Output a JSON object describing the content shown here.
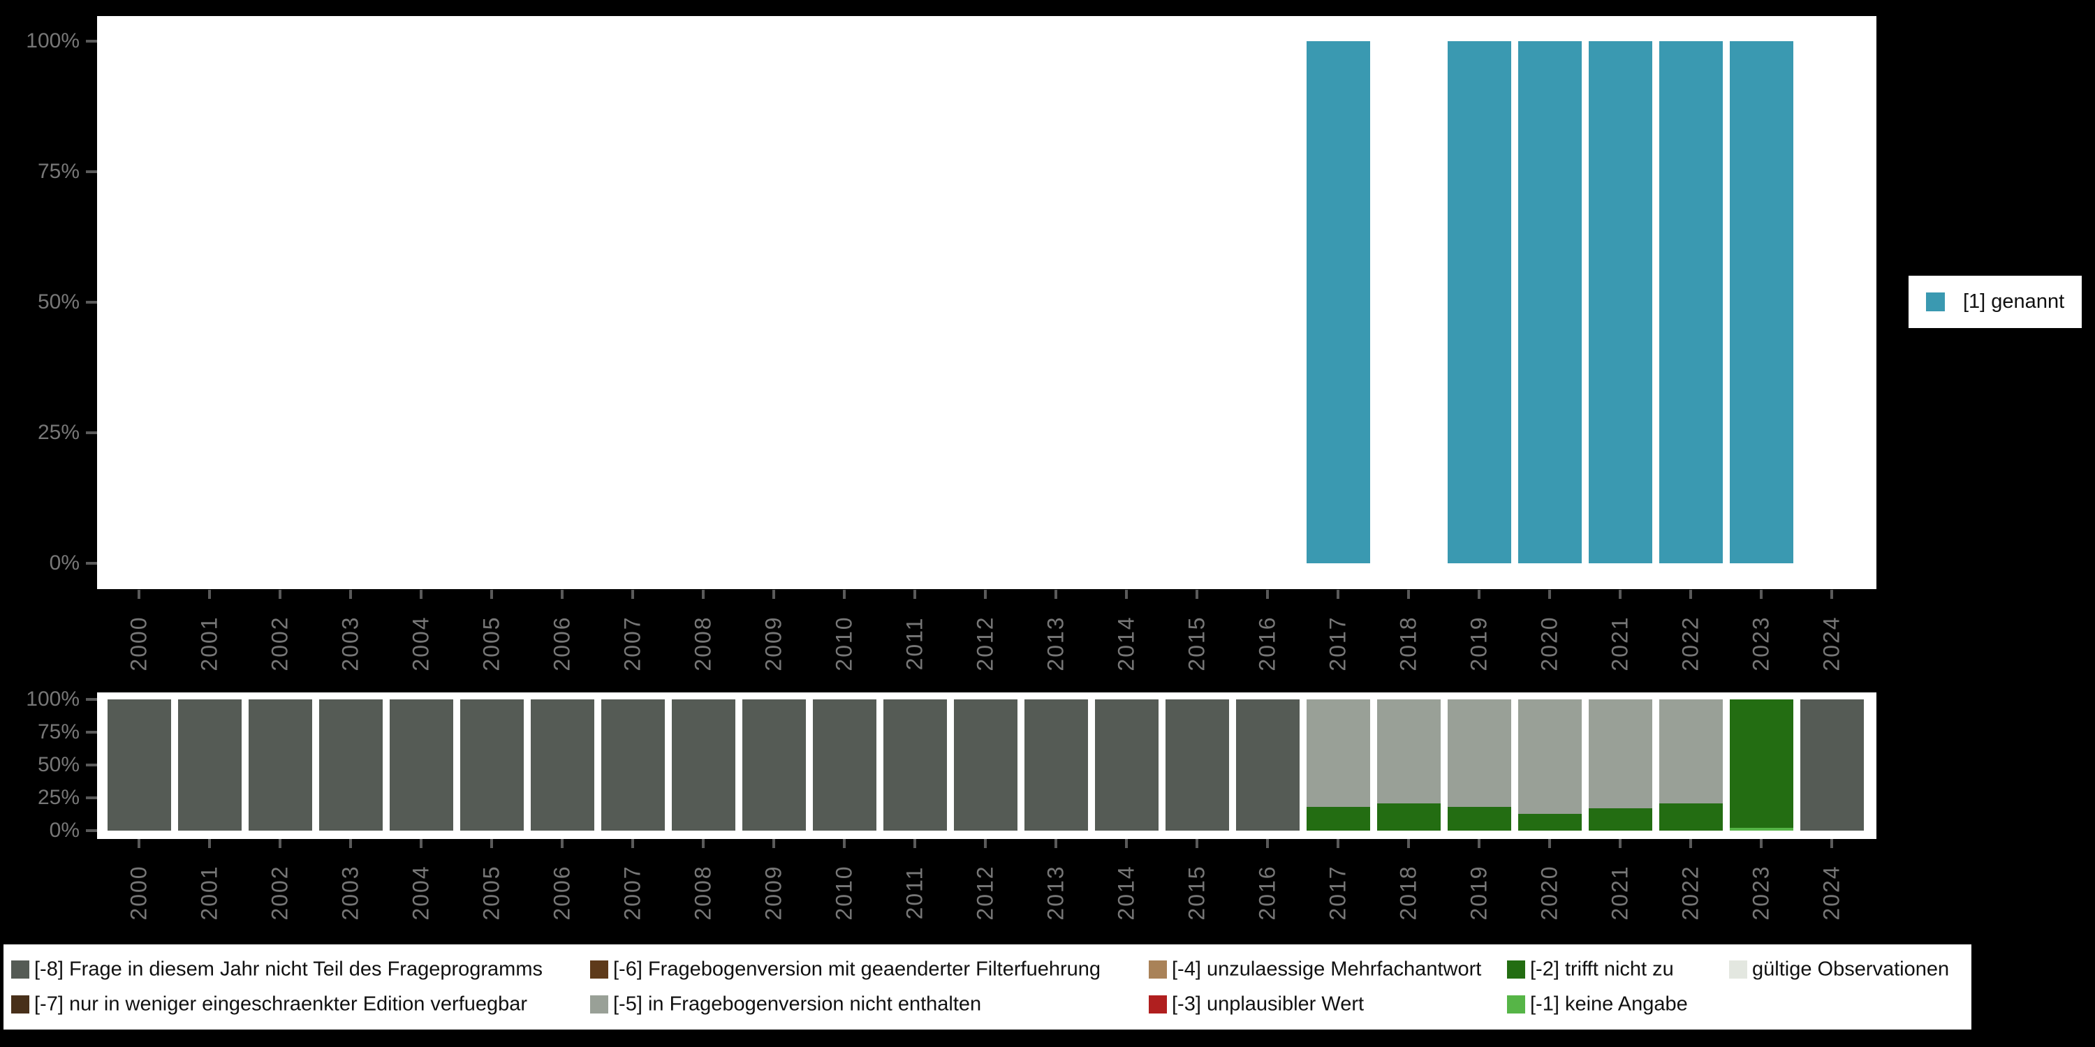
{
  "figure": {
    "background": "#000000",
    "panel_background": "#ffffff",
    "axis_text_color": "#777777",
    "tick_color": "#5a5a5a"
  },
  "chart_data": [
    {
      "type": "bar",
      "stacked": true,
      "title": "",
      "xlabel": "",
      "ylabel": "",
      "x": [
        2000,
        2001,
        2002,
        2003,
        2004,
        2005,
        2006,
        2007,
        2008,
        2009,
        2010,
        2011,
        2012,
        2013,
        2014,
        2015,
        2016,
        2017,
        2018,
        2019,
        2020,
        2021,
        2022,
        2023,
        2024
      ],
      "yticks": [
        "0%",
        "25%",
        "50%",
        "75%",
        "100%"
      ],
      "ylim": [
        0,
        100
      ],
      "grid": false,
      "legend_position": "right",
      "series": [
        {
          "name": "[1] genannt",
          "color": "#3A99B1",
          "values": [
            0,
            0,
            0,
            0,
            0,
            0,
            0,
            0,
            0,
            0,
            0,
            0,
            0,
            0,
            0,
            0,
            0,
            100,
            0,
            100,
            100,
            100,
            100,
            100,
            0
          ]
        }
      ]
    },
    {
      "type": "bar",
      "stacked": true,
      "title": "",
      "xlabel": "",
      "ylabel": "",
      "x": [
        2000,
        2001,
        2002,
        2003,
        2004,
        2005,
        2006,
        2007,
        2008,
        2009,
        2010,
        2011,
        2012,
        2013,
        2014,
        2015,
        2016,
        2017,
        2018,
        2019,
        2020,
        2021,
        2022,
        2023,
        2024
      ],
      "yticks": [
        "0%",
        "25%",
        "50%",
        "75%",
        "100%"
      ],
      "ylim": [
        0,
        100
      ],
      "grid": false,
      "legend_position": "bottom",
      "series": [
        {
          "name": "[-1] keine Angabe",
          "color": "#56B547",
          "values": [
            0,
            0,
            0,
            0,
            0,
            0,
            0,
            0,
            0,
            0,
            0,
            0,
            0,
            0,
            0,
            0,
            0,
            0,
            0,
            0,
            0,
            0,
            0,
            2,
            0
          ]
        },
        {
          "name": "[-2] trifft nicht zu",
          "color": "#236D12",
          "values": [
            0,
            0,
            0,
            0,
            0,
            0,
            0,
            0,
            0,
            0,
            0,
            0,
            0,
            0,
            0,
            0,
            0,
            18,
            21,
            18,
            13,
            17,
            21,
            98,
            0
          ]
        },
        {
          "name": "[-5] in Fragebogenversion nicht enthalten",
          "color": "#99A097",
          "values": [
            0,
            0,
            0,
            0,
            0,
            0,
            0,
            0,
            0,
            0,
            0,
            0,
            0,
            0,
            0,
            0,
            0,
            82,
            79,
            82,
            87,
            83,
            79,
            0,
            0
          ]
        },
        {
          "name": "[-8] Frage in diesem Jahr nicht Teil des Frageprogramms",
          "color": "#555B55",
          "values": [
            100,
            100,
            100,
            100,
            100,
            100,
            100,
            100,
            100,
            100,
            100,
            100,
            100,
            100,
            100,
            100,
            100,
            0,
            0,
            0,
            0,
            0,
            0,
            0,
            100
          ]
        }
      ]
    }
  ],
  "legend_right": {
    "label": "[1] genannt",
    "color": "#3A99B1"
  },
  "legend_bottom": {
    "columns": [
      [
        {
          "label": "[-8] Frage in diesem Jahr nicht Teil des Frageprogramms",
          "color": "#555B55"
        },
        {
          "label": "[-7] nur in weniger eingeschraenkter Edition verfuegbar",
          "color": "#48301A"
        }
      ],
      [
        {
          "label": "[-6] Fragebogenversion mit geaenderter Filterfuehrung",
          "color": "#5E3A1A"
        },
        {
          "label": "[-5] in Fragebogenversion nicht enthalten",
          "color": "#99A097"
        }
      ],
      [
        {
          "label": "[-4] unzulaessige Mehrfachantwort",
          "color": "#A98258"
        },
        {
          "label": "[-3] unplausibler Wert",
          "color": "#B01F1F"
        }
      ],
      [
        {
          "label": "[-2] trifft nicht zu",
          "color": "#236D12"
        },
        {
          "label": "[-1] keine Angabe",
          "color": "#56B547"
        }
      ],
      [
        {
          "label": "gültige Observationen",
          "color": "#E3E7E0"
        }
      ]
    ]
  }
}
